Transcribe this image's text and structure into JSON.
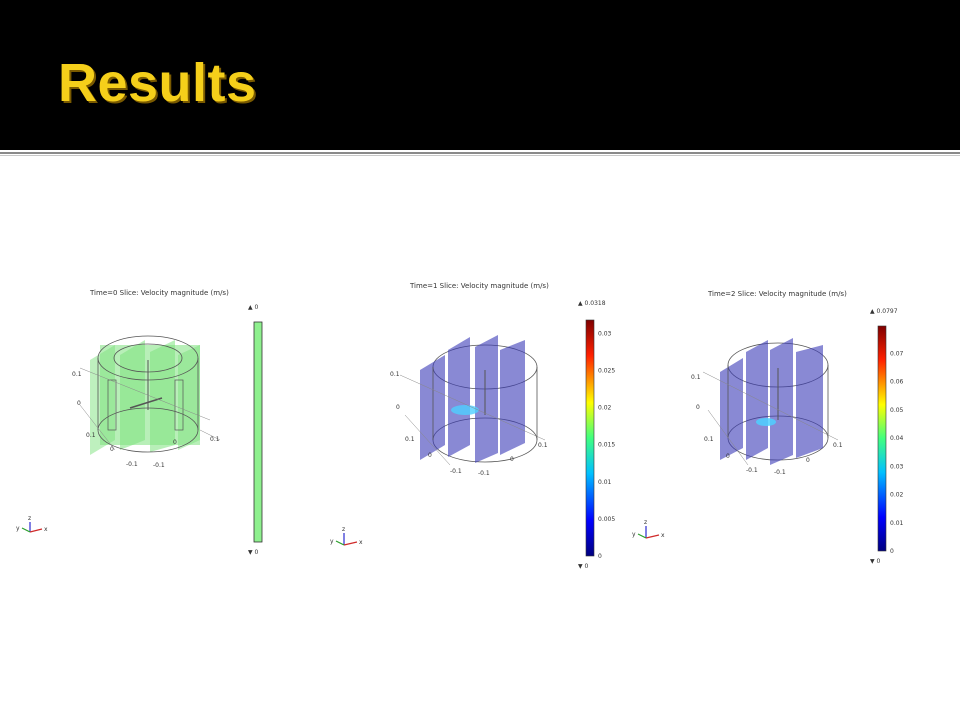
{
  "title": "Results",
  "plots": [
    {
      "header": "Time=0   Slice: Velocity magnitude (m/s)",
      "colorbar": {
        "max_label": "▲ 0",
        "min_label": "▼ 0",
        "ticks": []
      },
      "axis_labels": {
        "z_left_top": "0.1",
        "z_left_mid": "0",
        "y_left": "0.1",
        "x_right": "0.1",
        "y_bottom_0": "0",
        "x_bottom_0": "0",
        "y_neg": "-0.1",
        "x_neg": "-0.1"
      },
      "triad": {
        "z": "z",
        "y": "y",
        "x": "x"
      }
    },
    {
      "header": "Time=1   Slice: Velocity magnitude (m/s)",
      "colorbar": {
        "max_label": "▲ 0.0318",
        "min_label": "▼ 0",
        "ticks": [
          "0.03",
          "0.025",
          "0.02",
          "0.015",
          "0.01",
          "0.005",
          "0"
        ]
      },
      "axis_labels": {
        "z_left_top": "0.1",
        "z_left_mid": "0",
        "y_left": "0.1",
        "x_right": "0.1",
        "y_bottom_0": "0",
        "x_bottom_0": "0",
        "y_neg": "-0.1",
        "x_neg": "-0.1"
      },
      "triad": {
        "z": "z",
        "y": "y",
        "x": "x"
      }
    },
    {
      "header": "Time=2   Slice: Velocity magnitude (m/s)",
      "colorbar": {
        "max_label": "▲ 0.0797",
        "min_label": "▼ 0",
        "ticks": [
          "0.07",
          "0.06",
          "0.05",
          "0.04",
          "0.03",
          "0.02",
          "0.01",
          "0"
        ]
      },
      "axis_labels": {
        "z_left_top": "0.1",
        "z_left_mid": "0",
        "y_left": "0.1",
        "x_right": "0.1",
        "y_bottom_0": "0",
        "x_bottom_0": "0",
        "y_neg": "-0.1",
        "x_neg": "-0.1"
      },
      "triad": {
        "z": "z",
        "y": "y",
        "x": "x"
      }
    }
  ],
  "colors": {
    "title": "#f5cf1a",
    "slice_green": "#7ee27e",
    "slice_blue": "#3a3ab8",
    "colorbar_green": "#8ef08e"
  }
}
